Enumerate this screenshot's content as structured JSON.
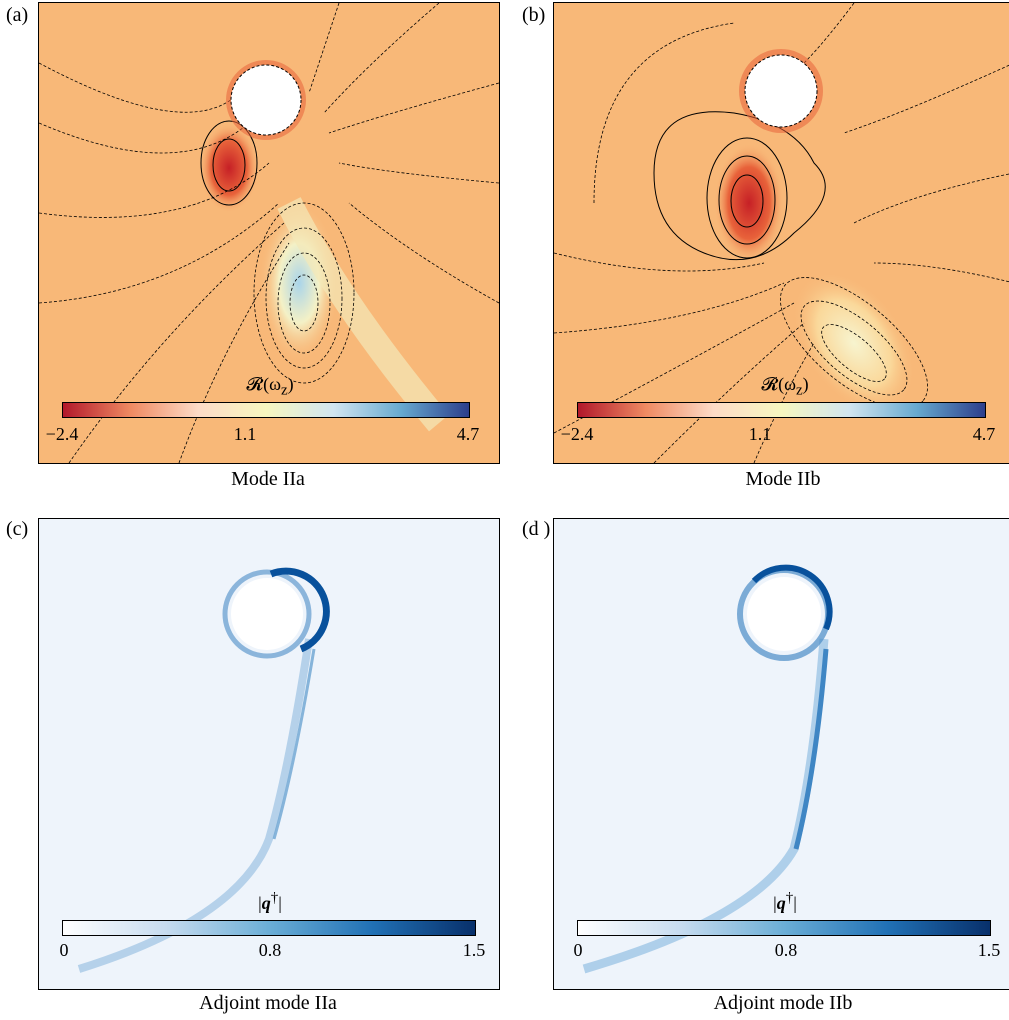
{
  "panels": [
    {
      "label": "(a)",
      "caption": "Mode IIa",
      "colorbar": {
        "title": "R(ωz)",
        "ticks": [
          "−2.4",
          "1.1",
          "4.7"
        ],
        "colors": [
          "#b2182b",
          "#ef8a62",
          "#fddbc7",
          "#f7f7c0",
          "#d1e5f0",
          "#67a9cf",
          "#2c3e8c"
        ]
      }
    },
    {
      "label": "(b)",
      "caption": "Mode IIb",
      "colorbar": {
        "title": "R(ωz)",
        "ticks": [
          "−2.4",
          "1.1",
          "4.7"
        ],
        "colors": [
          "#b2182b",
          "#ef8a62",
          "#fddbc7",
          "#f7f7c0",
          "#d1e5f0",
          "#67a9cf",
          "#2c3e8c"
        ]
      }
    },
    {
      "label": "(c)",
      "caption": "Adjoint mode IIa",
      "colorbar": {
        "title": "|q†|",
        "ticks": [
          "0",
          "0.8",
          "1.5"
        ],
        "colors": [
          "#ffffff",
          "#c6dbef",
          "#6baed6",
          "#2171b5",
          "#08306b"
        ]
      }
    },
    {
      "label": "(d )",
      "caption": "Adjoint mode IIb",
      "colorbar": {
        "title": "|q†|",
        "ticks": [
          "0",
          "0.8",
          "1.5"
        ],
        "colors": [
          "#ffffff",
          "#c6dbef",
          "#6baed6",
          "#2171b5",
          "#08306b"
        ]
      }
    }
  ]
}
